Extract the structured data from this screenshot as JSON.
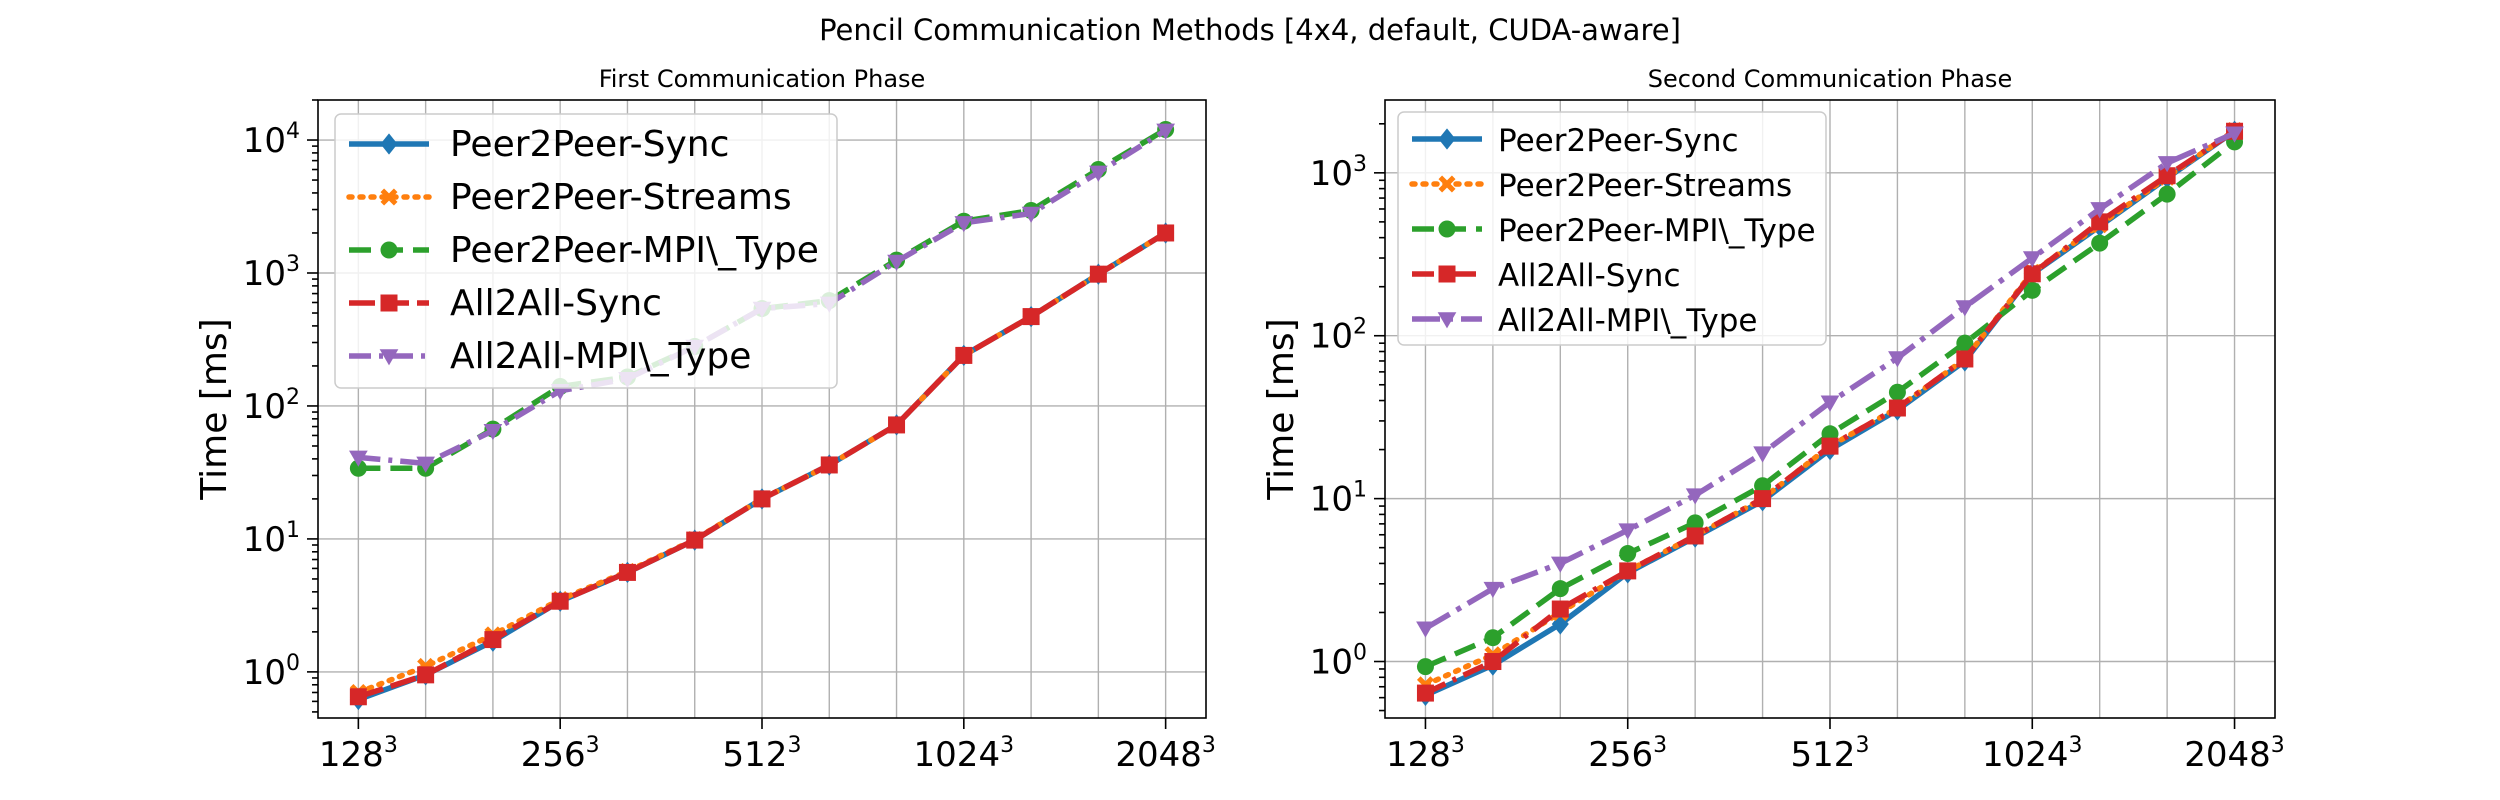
{
  "suptitle": "Pencil Communication Methods [4x4, default, CUDA-aware]",
  "colors": {
    "Peer2Peer-Sync": "#1f77b4",
    "Peer2Peer-Streams": "#ff7f0e",
    "Peer2Peer-MPI\\_Type": "#2ca02c",
    "All2All-Sync": "#d62728",
    "All2All-MPI\\_Type": "#9467bd"
  },
  "chart_data": [
    {
      "type": "line",
      "title": "First Communication Phase",
      "xlabel": "",
      "ylabel": "Time [ms]",
      "yscale": "log",
      "ylim": [
        0.45,
        20000
      ],
      "xlim": [
        0.4,
        13.6
      ],
      "x": [
        1,
        2,
        3,
        4,
        5,
        6,
        7,
        8,
        9,
        10,
        11,
        12,
        13
      ],
      "xtick_positions": [
        1,
        4,
        7,
        10,
        13
      ],
      "xtick_labels": [
        {
          "base": "128",
          "exp": "3"
        },
        {
          "base": "256",
          "exp": "3"
        },
        {
          "base": "512",
          "exp": "3"
        },
        {
          "base": "1024",
          "exp": "3"
        },
        {
          "base": "2048",
          "exp": "3"
        }
      ],
      "ytick_values": [
        1,
        10,
        100,
        1000,
        10000
      ],
      "ytick_labels": [
        {
          "base": "10",
          "exp": "0"
        },
        {
          "base": "10",
          "exp": "1"
        },
        {
          "base": "10",
          "exp": "2"
        },
        {
          "base": "10",
          "exp": "3"
        },
        {
          "base": "10",
          "exp": "4"
        }
      ],
      "grid": true,
      "legend": "upper-left",
      "series": [
        {
          "name": "Peer2Peer-Sync",
          "dash": "solid",
          "marker": "diamond",
          "values": [
            0.62,
            0.95,
            1.7,
            3.4,
            5.6,
            9.8,
            20,
            36,
            72,
            240,
            470,
            980,
            2000
          ]
        },
        {
          "name": "Peer2Peer-Streams",
          "dash": "dotted",
          "marker": "x",
          "values": [
            0.7,
            1.1,
            1.9,
            3.5,
            5.7,
            9.9,
            20,
            36,
            72,
            240,
            470,
            980,
            2000
          ]
        },
        {
          "name": "Peer2Peer-MPI\\_Type",
          "dash": "dashed",
          "marker": "circle",
          "values": [
            34,
            34,
            67,
            140,
            165,
            280,
            540,
            620,
            1250,
            2450,
            2950,
            6000,
            12000
          ]
        },
        {
          "name": "All2All-Sync",
          "dash": "longdash",
          "marker": "square",
          "values": [
            0.65,
            0.95,
            1.75,
            3.4,
            5.6,
            9.8,
            20,
            36,
            72,
            240,
            470,
            980,
            2000
          ]
        },
        {
          "name": "All2All-MPI\\_Type",
          "dash": "dashdot",
          "marker": "triangle-down",
          "values": [
            41,
            37,
            65,
            130,
            160,
            280,
            540,
            590,
            1220,
            2380,
            2800,
            5700,
            11800
          ]
        }
      ]
    },
    {
      "type": "line",
      "title": "Second Communication Phase",
      "xlabel": "",
      "ylabel": "Time [ms]",
      "yscale": "log",
      "ylim": [
        0.45,
        2800
      ],
      "xlim": [
        0.4,
        13.6
      ],
      "x": [
        1,
        2,
        3,
        4,
        5,
        6,
        7,
        8,
        9,
        10,
        11,
        12,
        13
      ],
      "xtick_positions": [
        1,
        4,
        7,
        10,
        13
      ],
      "xtick_labels": [
        {
          "base": "128",
          "exp": "3"
        },
        {
          "base": "256",
          "exp": "3"
        },
        {
          "base": "512",
          "exp": "3"
        },
        {
          "base": "1024",
          "exp": "3"
        },
        {
          "base": "2048",
          "exp": "3"
        }
      ],
      "ytick_values": [
        1,
        10,
        100,
        1000
      ],
      "ytick_labels": [
        {
          "base": "10",
          "exp": "0"
        },
        {
          "base": "10",
          "exp": "1"
        },
        {
          "base": "10",
          "exp": "2"
        },
        {
          "base": "10",
          "exp": "3"
        }
      ],
      "grid": true,
      "legend": "upper-left",
      "series": [
        {
          "name": "Peer2Peer-Sync",
          "dash": "solid",
          "marker": "diamond",
          "values": [
            0.62,
            0.95,
            1.7,
            3.5,
            5.8,
            9.7,
            20,
            35,
            70,
            240,
            470,
            930,
            1800
          ]
        },
        {
          "name": "Peer2Peer-Streams",
          "dash": "dotted",
          "marker": "x",
          "values": [
            0.72,
            1.1,
            2.0,
            3.6,
            5.9,
            10,
            21,
            36,
            72,
            245,
            480,
            940,
            1820
          ]
        },
        {
          "name": "Peer2Peer-MPI\\_Type",
          "dash": "dashed",
          "marker": "circle",
          "values": [
            0.93,
            1.4,
            2.8,
            4.6,
            7.1,
            12,
            25,
            45,
            90,
            190,
            370,
            740,
            1550
          ]
        },
        {
          "name": "All2All-Sync",
          "dash": "dashdot",
          "marker": "square",
          "values": [
            0.64,
            1.0,
            2.1,
            3.6,
            5.9,
            10,
            21,
            36,
            72,
            240,
            500,
            960,
            1800
          ]
        },
        {
          "name": "All2All-MPI\\_Type",
          "dash": "longdashdot",
          "marker": "triangle-down",
          "values": [
            1.6,
            2.8,
            4.0,
            6.4,
            10.5,
            19,
            39,
            73,
            150,
            300,
            600,
            1150,
            1750
          ]
        }
      ]
    }
  ]
}
